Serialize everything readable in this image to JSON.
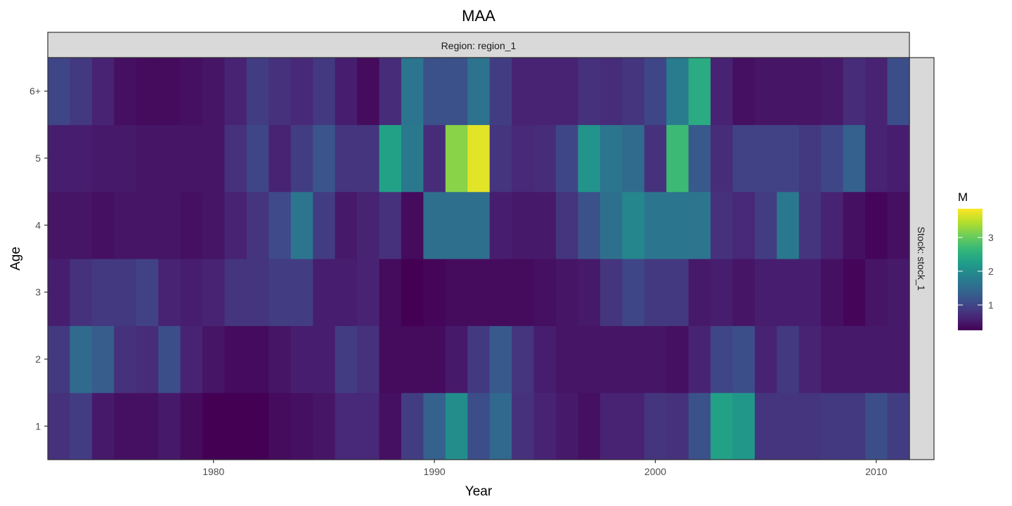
{
  "chart_data": {
    "type": "heatmap",
    "title": "MAA",
    "xlabel": "Year",
    "ylabel": "Age",
    "facet_top": "Region: region_1",
    "facet_right": "Stock: stock_1",
    "years": [
      1973,
      1974,
      1975,
      1976,
      1977,
      1978,
      1979,
      1980,
      1981,
      1982,
      1983,
      1984,
      1985,
      1986,
      1987,
      1988,
      1989,
      1990,
      1991,
      1992,
      1993,
      1994,
      1995,
      1996,
      1997,
      1998,
      1999,
      2000,
      2001,
      2002,
      2003,
      2004,
      2005,
      2006,
      2007,
      2008,
      2009,
      2010,
      2011
    ],
    "x_ticks": [
      1980,
      1990,
      2000,
      2010
    ],
    "x_tick_labels": [
      "1980",
      "1990",
      "2000",
      "2010"
    ],
    "ages": [
      "1",
      "2",
      "3",
      "4",
      "5",
      "6+"
    ],
    "values": {
      "1": [
        0.75,
        0.9,
        0.5,
        0.4,
        0.4,
        0.5,
        0.35,
        0.25,
        0.2,
        0.2,
        0.35,
        0.4,
        0.45,
        0.65,
        0.65,
        0.4,
        0.9,
        1.35,
        2.0,
        1.1,
        1.45,
        0.75,
        0.6,
        0.5,
        0.4,
        0.6,
        0.6,
        0.8,
        0.75,
        1.15,
        2.3,
        2.15,
        0.8,
        0.8,
        0.8,
        0.85,
        0.85,
        1.1,
        0.9
      ],
      "2": [
        0.85,
        1.5,
        1.3,
        0.75,
        0.7,
        1.1,
        0.6,
        0.45,
        0.35,
        0.35,
        0.45,
        0.55,
        0.55,
        0.9,
        0.75,
        0.35,
        0.35,
        0.35,
        0.5,
        0.85,
        1.25,
        0.8,
        0.55,
        0.45,
        0.45,
        0.45,
        0.45,
        0.45,
        0.4,
        0.6,
        1.0,
        1.1,
        0.6,
        0.85,
        0.6,
        0.5,
        0.5,
        0.5,
        0.5
      ],
      "3": [
        0.55,
        0.75,
        0.85,
        0.85,
        0.95,
        0.6,
        0.55,
        0.6,
        0.8,
        0.8,
        0.9,
        0.9,
        0.55,
        0.55,
        0.6,
        0.35,
        0.2,
        0.3,
        0.35,
        0.35,
        0.35,
        0.35,
        0.4,
        0.45,
        0.5,
        0.8,
        1.0,
        0.85,
        0.85,
        0.5,
        0.55,
        0.45,
        0.55,
        0.55,
        0.55,
        0.4,
        0.3,
        0.45,
        0.5
      ],
      "4": [
        0.45,
        0.45,
        0.4,
        0.45,
        0.45,
        0.45,
        0.4,
        0.45,
        0.6,
        0.8,
        1.05,
        1.65,
        0.9,
        0.5,
        0.6,
        0.75,
        0.35,
        1.55,
        1.55,
        1.55,
        0.55,
        0.5,
        0.5,
        0.8,
        1.15,
        1.55,
        1.9,
        1.65,
        1.65,
        1.65,
        0.75,
        0.65,
        0.9,
        1.7,
        0.8,
        0.6,
        0.4,
        0.3,
        0.4
      ],
      "5": [
        0.55,
        0.55,
        0.5,
        0.5,
        0.45,
        0.45,
        0.45,
        0.45,
        0.75,
        1.0,
        0.6,
        0.9,
        1.2,
        0.8,
        0.8,
        2.3,
        1.7,
        0.7,
        3.2,
        3.7,
        0.8,
        0.65,
        0.7,
        1.0,
        2.1,
        1.65,
        1.5,
        0.75,
        2.7,
        1.25,
        0.7,
        0.95,
        0.95,
        0.95,
        0.85,
        1.0,
        1.35,
        0.6,
        0.55
      ],
      "6+": [
        1.0,
        0.85,
        0.6,
        0.4,
        0.35,
        0.35,
        0.4,
        0.45,
        0.6,
        0.9,
        0.75,
        0.65,
        0.85,
        0.55,
        0.35,
        0.7,
        1.65,
        1.15,
        1.15,
        1.6,
        0.9,
        0.6,
        0.6,
        0.6,
        0.75,
        0.7,
        0.8,
        1.0,
        1.75,
        2.45,
        0.6,
        0.4,
        0.45,
        0.45,
        0.45,
        0.5,
        0.7,
        0.6,
        1.1
      ]
    },
    "colorbar": {
      "title": "M",
      "min": 0.25,
      "max": 3.85,
      "ticks": [
        1,
        2,
        3
      ],
      "tick_labels": [
        "1",
        "2",
        "3"
      ],
      "palette": [
        "#440154",
        "#482878",
        "#3E4A89",
        "#31688E",
        "#26828E",
        "#1F9E89",
        "#35B779",
        "#6DCD59",
        "#B4DE2C",
        "#FDE725"
      ]
    }
  }
}
